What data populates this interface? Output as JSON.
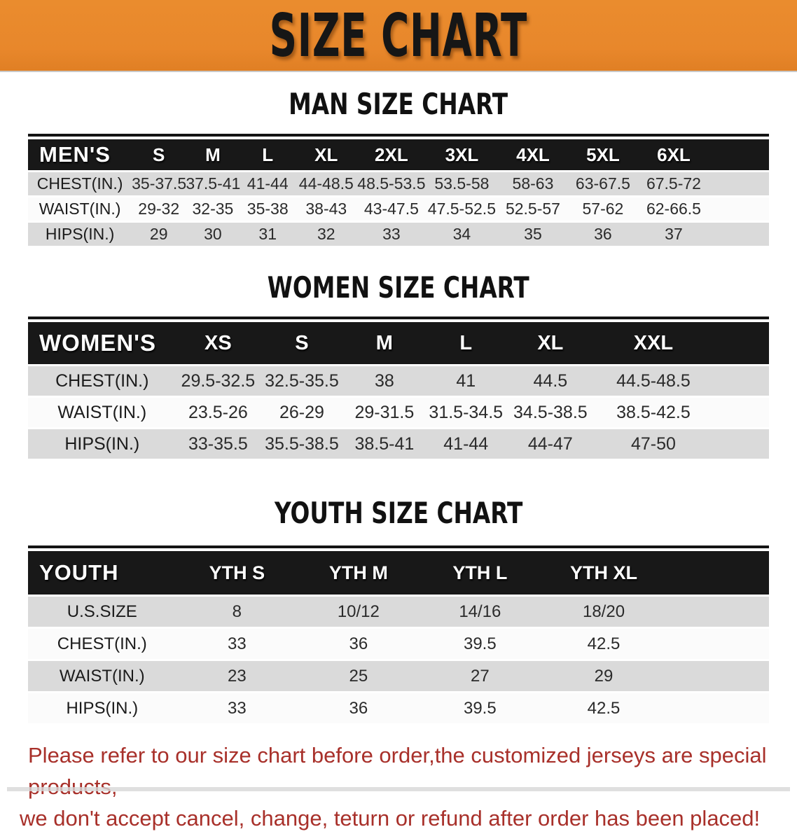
{
  "banner": {
    "title": "SIZE CHART",
    "bg_color": "#E8872B",
    "text_color": "#161616"
  },
  "sections": [
    {
      "title": "MAN SIZE CHART",
      "table": {
        "header_label": "MEN'S",
        "columns": [
          "S",
          "M",
          "L",
          "XL",
          "2XL",
          "3XL",
          "4XL",
          "5XL",
          "6XL"
        ],
        "rows": [
          {
            "label": "CHEST(IN.)",
            "values": [
              "35-37.5",
              "37.5-41",
              "41-44",
              "44-48.5",
              "48.5-53.5",
              "53.5-58",
              "58-63",
              "63-67.5",
              "67.5-72"
            ]
          },
          {
            "label": "WAIST(IN.)",
            "values": [
              "29-32",
              "32-35",
              "35-38",
              "38-43",
              "43-47.5",
              "47.5-52.5",
              "52.5-57",
              "57-62",
              "62-66.5"
            ]
          },
          {
            "label": "HIPS(IN.)",
            "values": [
              "29",
              "30",
              "31",
              "32",
              "33",
              "34",
              "35",
              "36",
              "37"
            ]
          }
        ]
      }
    },
    {
      "title": "WOMEN SIZE CHART",
      "table": {
        "header_label": "WOMEN'S",
        "columns": [
          "XS",
          "S",
          "M",
          "L",
          "XL",
          "XXL"
        ],
        "rows": [
          {
            "label": "CHEST(IN.)",
            "values": [
              "29.5-32.5",
              "32.5-35.5",
              "38",
              "41",
              "44.5",
              "44.5-48.5"
            ]
          },
          {
            "label": "WAIST(IN.)",
            "values": [
              "23.5-26",
              "26-29",
              "29-31.5",
              "31.5-34.5",
              "34.5-38.5",
              "38.5-42.5"
            ]
          },
          {
            "label": "HIPS(IN.)",
            "values": [
              "33-35.5",
              "35.5-38.5",
              "38.5-41",
              "41-44",
              "44-47",
              "47-50"
            ]
          }
        ]
      }
    },
    {
      "title": "YOUTH SIZE CHART",
      "table": {
        "header_label": "YOUTH",
        "columns": [
          "YTH S",
          "YTH M",
          "YTH L",
          "YTH XL"
        ],
        "rows": [
          {
            "label": "U.S.SIZE",
            "values": [
              "8",
              "10/12",
              "14/16",
              "18/20"
            ]
          },
          {
            "label": "CHEST(IN.)",
            "values": [
              "33",
              "36",
              "39.5",
              "42.5"
            ]
          },
          {
            "label": "WAIST(IN.)",
            "values": [
              "23",
              "25",
              "27",
              "29"
            ]
          },
          {
            "label": "HIPS(IN.)",
            "values": [
              "33",
              "36",
              "39.5",
              "42.5"
            ]
          }
        ]
      }
    }
  ],
  "disclaimer": {
    "line1": "Please refer to our size chart before order,the customized jerseys are special products,",
    "line2": "we don't accept cancel, change, teturn or refund after order has been placed!",
    "color": "#A8302A"
  },
  "colors": {
    "banner_orange": "#E8872B",
    "table_header_black": "#181818",
    "stripe_gray": "#DADADA",
    "stripe_white": "#FBFBFB"
  }
}
